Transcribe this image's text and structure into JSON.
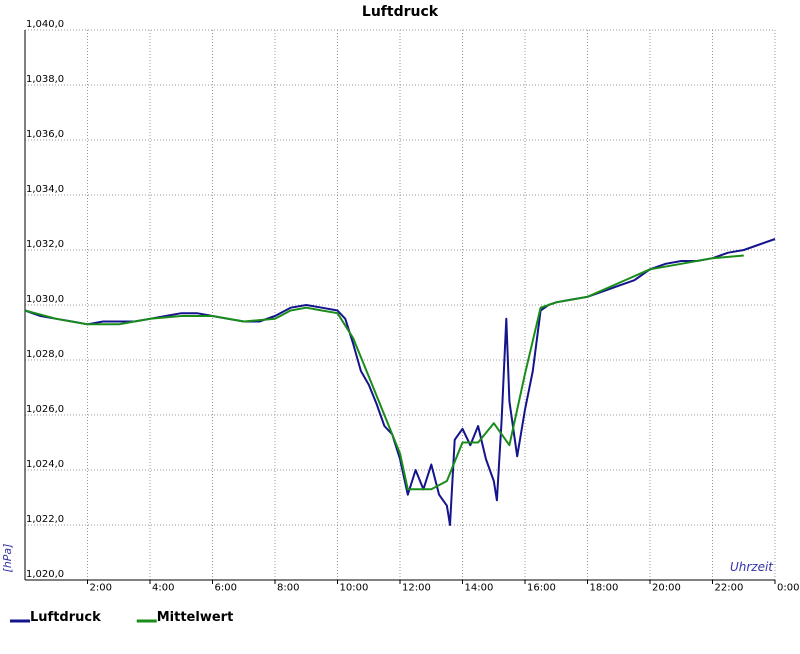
{
  "chart_data": {
    "type": "line",
    "title": "Luftdruck",
    "ylabel": "[hPa]",
    "xlabel": "Uhrzeit",
    "xlim": [
      0,
      24
    ],
    "ylim": [
      1020,
      1040
    ],
    "xticks": [
      {
        "value": 2,
        "label": "2:00"
      },
      {
        "value": 4,
        "label": "4:00"
      },
      {
        "value": 6,
        "label": "6:00"
      },
      {
        "value": 8,
        "label": "8:00"
      },
      {
        "value": 10,
        "label": "10:00"
      },
      {
        "value": 12,
        "label": "12:00"
      },
      {
        "value": 14,
        "label": "14:00"
      },
      {
        "value": 16,
        "label": "16:00"
      },
      {
        "value": 18,
        "label": "18:00"
      },
      {
        "value": 20,
        "label": "20:00"
      },
      {
        "value": 22,
        "label": "22:00"
      },
      {
        "value": 24,
        "label": "0:00"
      }
    ],
    "yticks": [
      {
        "value": 1020,
        "label": "1,020,0"
      },
      {
        "value": 1022,
        "label": "1,022,0"
      },
      {
        "value": 1024,
        "label": "1,024,0"
      },
      {
        "value": 1026,
        "label": "1,026,0"
      },
      {
        "value": 1028,
        "label": "1,028,0"
      },
      {
        "value": 1030,
        "label": "1,030,0"
      },
      {
        "value": 1032,
        "label": "1,032,0"
      },
      {
        "value": 1034,
        "label": "1,034,0"
      },
      {
        "value": 1036,
        "label": "1,036,0"
      },
      {
        "value": 1038,
        "label": "1,038,0"
      },
      {
        "value": 1040,
        "label": "1,040,0"
      }
    ],
    "grid": true,
    "series": [
      {
        "name": "Luftdruck",
        "color": "#14148c",
        "x": [
          0,
          0.5,
          1,
          1.5,
          2,
          2.5,
          3,
          3.5,
          4,
          4.5,
          5,
          5.5,
          6,
          6.5,
          7,
          7.5,
          8,
          8.5,
          9,
          9.5,
          10,
          10.25,
          10.5,
          10.75,
          11,
          11.25,
          11.5,
          11.75,
          12,
          12.25,
          12.5,
          12.75,
          13,
          13.25,
          13.5,
          13.6,
          13.75,
          14,
          14.25,
          14.5,
          14.75,
          15,
          15.1,
          15.25,
          15.4,
          15.5,
          15.75,
          16,
          16.25,
          16.5,
          16.75,
          17,
          17.5,
          18,
          18.5,
          19,
          19.5,
          20,
          20.5,
          21,
          21.5,
          22,
          22.5,
          23,
          23.5,
          24
        ],
        "values": [
          1029.8,
          1029.6,
          1029.5,
          1029.4,
          1029.3,
          1029.4,
          1029.4,
          1029.4,
          1029.5,
          1029.6,
          1029.7,
          1029.7,
          1029.6,
          1029.5,
          1029.4,
          1029.4,
          1029.6,
          1029.9,
          1030.0,
          1029.9,
          1029.8,
          1029.5,
          1028.6,
          1027.6,
          1027.1,
          1026.4,
          1025.6,
          1025.3,
          1024.4,
          1023.1,
          1024.0,
          1023.3,
          1024.2,
          1023.1,
          1022.7,
          1022.0,
          1025.1,
          1025.5,
          1024.9,
          1025.6,
          1024.4,
          1023.6,
          1022.9,
          1025.8,
          1029.5,
          1026.5,
          1024.5,
          1026.2,
          1027.6,
          1029.8,
          1030.0,
          1030.1,
          1030.2,
          1030.3,
          1030.5,
          1030.7,
          1030.9,
          1031.3,
          1031.5,
          1031.6,
          1031.6,
          1031.7,
          1031.9,
          1032.0,
          1032.2,
          1032.4
        ]
      },
      {
        "name": "Mittelwert",
        "color": "#1a8c1a",
        "x": [
          0,
          1,
          2,
          3,
          4,
          5,
          6,
          7,
          8,
          8.5,
          9,
          9.5,
          10,
          10.5,
          11,
          11.5,
          12,
          12.25,
          13,
          13.5,
          14,
          14.5,
          15,
          15.5,
          16,
          16.5,
          17,
          18,
          19,
          20,
          21,
          22,
          23
        ],
        "values": [
          1029.8,
          1029.5,
          1029.3,
          1029.3,
          1029.5,
          1029.6,
          1029.6,
          1029.4,
          1029.5,
          1029.8,
          1029.9,
          1029.8,
          1029.7,
          1028.8,
          1027.4,
          1026.0,
          1024.6,
          1023.3,
          1023.3,
          1023.6,
          1025.0,
          1025.0,
          1025.7,
          1024.9,
          1027.5,
          1029.9,
          1030.1,
          1030.3,
          1030.8,
          1031.3,
          1031.5,
          1031.7,
          1031.8
        ]
      }
    ]
  }
}
